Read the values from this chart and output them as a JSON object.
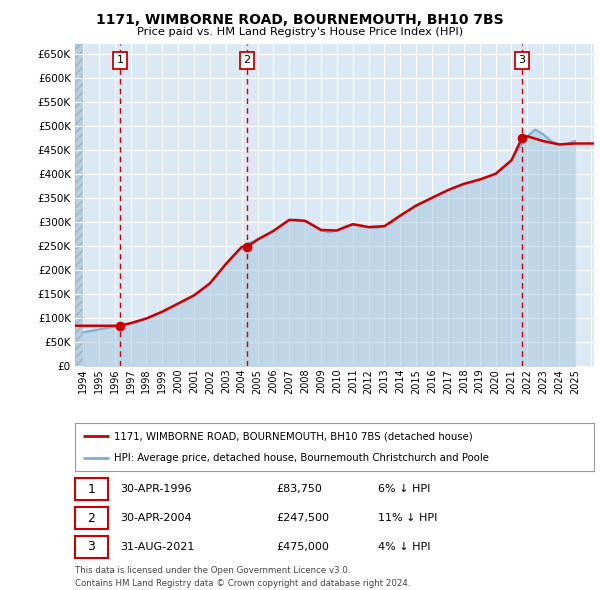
{
  "title1": "1171, WIMBORNE ROAD, BOURNEMOUTH, BH10 7BS",
  "title2": "Price paid vs. HM Land Registry's House Price Index (HPI)",
  "ylabel_ticks": [
    "£0",
    "£50K",
    "£100K",
    "£150K",
    "£200K",
    "£250K",
    "£300K",
    "£350K",
    "£400K",
    "£450K",
    "£500K",
    "£550K",
    "£600K",
    "£650K"
  ],
  "ytick_values": [
    0,
    50000,
    100000,
    150000,
    200000,
    250000,
    300000,
    350000,
    400000,
    450000,
    500000,
    550000,
    600000,
    650000
  ],
  "xlim_start": 1993.5,
  "xlim_end": 2026.2,
  "ylim_min": 0,
  "ylim_max": 670000,
  "sale_dates": [
    1996.33,
    2004.33,
    2021.67
  ],
  "sale_prices": [
    83750,
    247500,
    475000
  ],
  "sale_labels": [
    "1",
    "2",
    "3"
  ],
  "hpi_years": [
    1994.0,
    1994.5,
    1995.0,
    1995.5,
    1996.0,
    1996.5,
    1997.0,
    1997.5,
    1998.0,
    1998.5,
    1999.0,
    1999.5,
    2000.0,
    2000.5,
    2001.0,
    2001.5,
    2002.0,
    2002.5,
    2003.0,
    2003.5,
    2004.0,
    2004.5,
    2005.0,
    2005.5,
    2006.0,
    2006.5,
    2007.0,
    2007.5,
    2008.0,
    2008.5,
    2009.0,
    2009.5,
    2010.0,
    2010.5,
    2011.0,
    2011.5,
    2012.0,
    2012.5,
    2013.0,
    2013.5,
    2014.0,
    2014.5,
    2015.0,
    2015.5,
    2016.0,
    2016.5,
    2017.0,
    2017.5,
    2018.0,
    2018.5,
    2019.0,
    2019.5,
    2020.0,
    2020.5,
    2021.0,
    2021.5,
    2022.0,
    2022.5,
    2023.0,
    2023.5,
    2024.0,
    2024.5,
    2025.0
  ],
  "hpi_values": [
    70000,
    73000,
    76000,
    79000,
    82000,
    85000,
    89000,
    93000,
    99000,
    105000,
    113000,
    121000,
    130000,
    138000,
    147000,
    158000,
    172000,
    191000,
    212000,
    230000,
    248000,
    256000,
    263000,
    272000,
    281000,
    293000,
    304000,
    305000,
    302000,
    294000,
    283000,
    278000,
    282000,
    290000,
    295000,
    293000,
    289000,
    287000,
    291000,
    300000,
    313000,
    323000,
    334000,
    341000,
    350000,
    358000,
    366000,
    373000,
    379000,
    383000,
    388000,
    393000,
    400000,
    412000,
    428000,
    455000,
    478000,
    492000,
    482000,
    468000,
    461000,
    463000,
    468000
  ],
  "price_line_years": [
    1993.5,
    1994.0,
    1995.0,
    1996.0,
    1996.33,
    1997.0,
    1998.0,
    1999.0,
    2000.0,
    2001.0,
    2002.0,
    2003.0,
    2004.0,
    2004.33,
    2005.0,
    2006.0,
    2007.0,
    2008.0,
    2009.0,
    2010.0,
    2011.0,
    2012.0,
    2013.0,
    2014.0,
    2015.0,
    2016.0,
    2017.0,
    2018.0,
    2019.0,
    2020.0,
    2021.0,
    2021.67,
    2022.0,
    2023.0,
    2024.0,
    2025.0,
    2026.2
  ],
  "price_line_values": [
    83750,
    83750,
    83750,
    83750,
    83750,
    89000,
    99000,
    113000,
    130000,
    147000,
    172000,
    212000,
    247500,
    247500,
    263000,
    281000,
    304000,
    302000,
    283000,
    282000,
    295000,
    289000,
    291000,
    313000,
    334000,
    350000,
    366000,
    379000,
    388000,
    400000,
    428000,
    475000,
    478000,
    468000,
    461000,
    463000,
    463000
  ],
  "legend_entries": [
    "1171, WIMBORNE ROAD, BOURNEMOUTH, BH10 7BS (detached house)",
    "HPI: Average price, detached house, Bournemouth Christchurch and Poole"
  ],
  "table_rows": [
    {
      "num": "1",
      "date": "30-APR-1996",
      "price": "£83,750",
      "hpi": "6% ↓ HPI"
    },
    {
      "num": "2",
      "date": "30-APR-2004",
      "price": "£247,500",
      "hpi": "11% ↓ HPI"
    },
    {
      "num": "3",
      "date": "31-AUG-2021",
      "price": "£475,000",
      "hpi": "4% ↓ HPI"
    }
  ],
  "footnote1": "Contains HM Land Registry data © Crown copyright and database right 2024.",
  "footnote2": "This data is licensed under the Open Government Licence v3.0.",
  "plot_bg": "#dce9f5",
  "hatch_color": "#b8cfe0",
  "grid_color": "#ffffff",
  "hpi_line_color": "#7ab0d4",
  "hpi_fill_color": "#a8c8e0",
  "price_line_color": "#cc0000",
  "sale_dot_color": "#cc0000",
  "vline_color": "#cc0000",
  "box_edge_color": "#cc0000"
}
